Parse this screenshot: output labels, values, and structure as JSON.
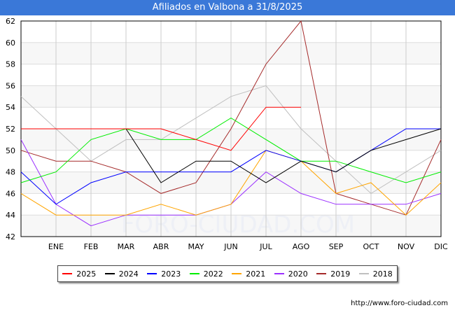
{
  "title": "Afiliados en Valbona a 31/8/2025",
  "url": "http://www.foro-ciudad.com",
  "watermark": "FORO-CIUDAD.COM",
  "chart_data": {
    "type": "line",
    "title": "Afiliados en Valbona a 31/8/2025",
    "categories": [
      "",
      "ENE",
      "FEB",
      "MAR",
      "ABR",
      "MAY",
      "JUN",
      "JUL",
      "AGO",
      "SEP",
      "OCT",
      "NOV",
      "DIC"
    ],
    "ylim": [
      42,
      62
    ],
    "yticks": [
      42,
      44,
      46,
      48,
      50,
      52,
      54,
      56,
      58,
      60,
      62
    ],
    "grid": true,
    "legend_position": "bottom",
    "series": [
      {
        "name": "2025",
        "color": "#ff0000",
        "values": [
          52,
          52,
          52,
          52,
          52,
          51,
          50,
          54,
          54,
          null,
          null,
          null,
          null
        ]
      },
      {
        "name": "2024",
        "color": "#000000",
        "values": [
          52,
          52,
          52,
          52,
          47,
          49,
          49,
          47,
          49,
          48,
          50,
          51,
          52
        ]
      },
      {
        "name": "2023",
        "color": "#0000ff",
        "values": [
          48,
          45,
          47,
          48,
          48,
          48,
          48,
          50,
          49,
          48,
          50,
          52,
          52
        ]
      },
      {
        "name": "2022",
        "color": "#00ee00",
        "values": [
          47,
          48,
          51,
          52,
          51,
          51,
          53,
          51,
          49,
          49,
          48,
          47,
          48
        ]
      },
      {
        "name": "2021",
        "color": "#ffa500",
        "values": [
          46,
          44,
          44,
          44,
          45,
          44,
          45,
          50,
          49,
          46,
          47,
          44,
          47
        ]
      },
      {
        "name": "2020",
        "color": "#9b30ff",
        "values": [
          51,
          45,
          43,
          44,
          44,
          44,
          45,
          48,
          46,
          45,
          45,
          45,
          46
        ]
      },
      {
        "name": "2019",
        "color": "#a52a2a",
        "values": [
          50,
          49,
          49,
          48,
          46,
          47,
          52,
          58,
          62,
          46,
          45,
          44,
          51
        ]
      },
      {
        "name": "2018",
        "color": "#c0c0c0",
        "values": [
          55,
          52,
          49,
          51,
          51,
          53,
          55,
          56,
          52,
          49,
          46,
          48,
          50
        ]
      }
    ]
  }
}
